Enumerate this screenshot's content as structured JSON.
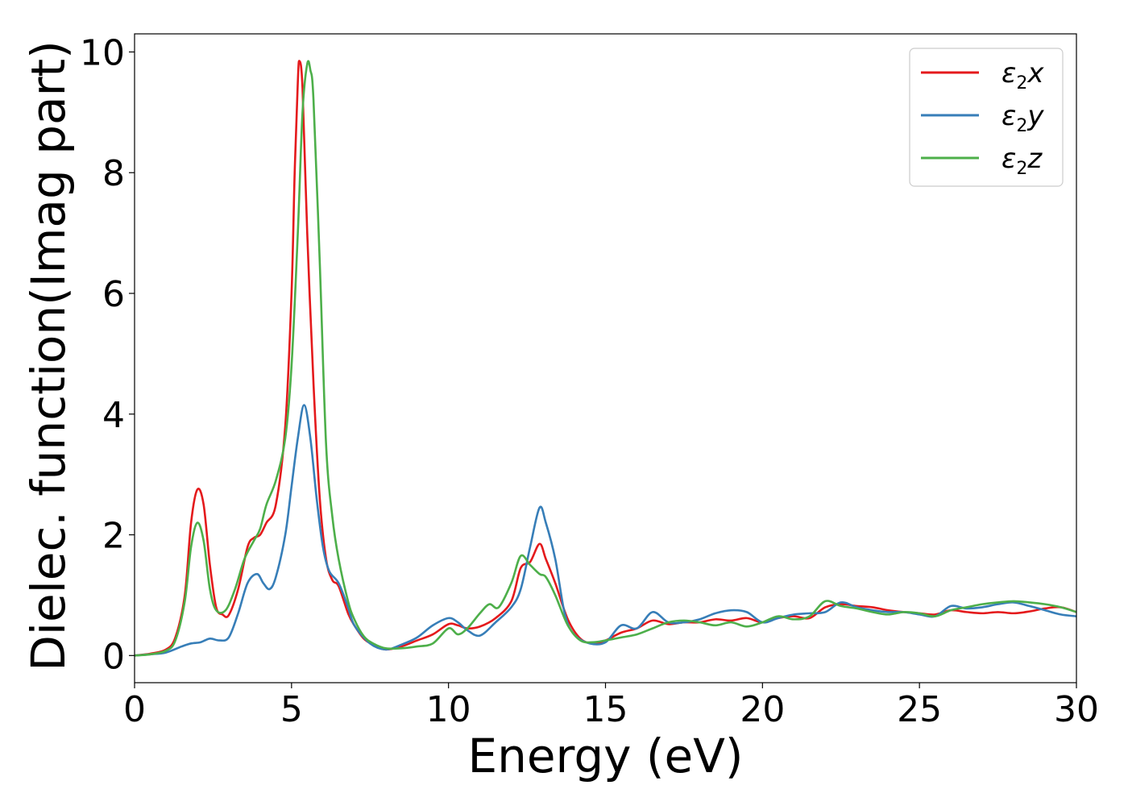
{
  "chart_data": {
    "type": "line",
    "title": "",
    "xlabel": "Energy (eV)",
    "ylabel": "Dielec. function(Imag part)",
    "xlim": [
      0,
      30
    ],
    "ylim": [
      -0.45,
      10.3
    ],
    "xticks": [
      0,
      5,
      10,
      15,
      20,
      25,
      30
    ],
    "yticks": [
      0,
      2,
      4,
      6,
      8,
      10
    ],
    "grid": false,
    "legend_position": "top-right",
    "series": [
      {
        "name": "ε2x",
        "legend": {
          "base": "ε",
          "sub": "2",
          "suffix": "x"
        },
        "color": "#e41a1c",
        "x": [
          0,
          0.5,
          1.0,
          1.3,
          1.6,
          1.8,
          2.0,
          2.2,
          2.4,
          2.6,
          2.8,
          3.0,
          3.3,
          3.6,
          3.8,
          4.0,
          4.2,
          4.5,
          4.8,
          5.0,
          5.1,
          5.2,
          5.25,
          5.35,
          5.5,
          5.7,
          5.9,
          6.1,
          6.3,
          6.5,
          6.8,
          7.0,
          7.3,
          7.6,
          8.0,
          8.5,
          9.0,
          9.5,
          10.0,
          10.3,
          10.6,
          11.0,
          11.5,
          12.0,
          12.3,
          12.6,
          12.9,
          13.1,
          13.4,
          13.8,
          14.2,
          14.6,
          15.0,
          15.5,
          16.0,
          16.5,
          17.0,
          17.5,
          18.0,
          18.5,
          19.0,
          19.5,
          20.0,
          20.5,
          21.0,
          21.5,
          22.0,
          22.5,
          23.0,
          23.5,
          24.0,
          24.5,
          25.0,
          25.5,
          26.0,
          26.5,
          27.0,
          27.5,
          28.0,
          28.5,
          29.0,
          29.5,
          30.0
        ],
        "y": [
          0,
          0.03,
          0.1,
          0.3,
          1.0,
          2.2,
          2.75,
          2.5,
          1.5,
          0.8,
          0.68,
          0.67,
          1.1,
          1.8,
          1.95,
          2.0,
          2.2,
          2.5,
          3.8,
          6.0,
          8.0,
          9.5,
          9.85,
          9.4,
          7.0,
          4.5,
          2.6,
          1.6,
          1.25,
          1.15,
          0.7,
          0.5,
          0.28,
          0.18,
          0.1,
          0.15,
          0.25,
          0.35,
          0.52,
          0.5,
          0.45,
          0.48,
          0.62,
          0.9,
          1.45,
          1.55,
          1.85,
          1.6,
          1.2,
          0.6,
          0.28,
          0.2,
          0.25,
          0.38,
          0.45,
          0.58,
          0.52,
          0.55,
          0.55,
          0.6,
          0.58,
          0.62,
          0.55,
          0.62,
          0.65,
          0.62,
          0.8,
          0.85,
          0.82,
          0.8,
          0.75,
          0.72,
          0.7,
          0.68,
          0.75,
          0.72,
          0.7,
          0.72,
          0.7,
          0.73,
          0.78,
          0.8,
          0.72
        ]
      },
      {
        "name": "ε2y",
        "legend": {
          "base": "ε",
          "sub": "2",
          "suffix": "y"
        },
        "color": "#377eb8",
        "x": [
          0,
          0.5,
          1.0,
          1.5,
          1.8,
          2.1,
          2.4,
          2.7,
          3.0,
          3.3,
          3.6,
          3.9,
          4.1,
          4.3,
          4.5,
          4.8,
          5.0,
          5.2,
          5.4,
          5.6,
          5.8,
          6.0,
          6.2,
          6.5,
          6.8,
          7.0,
          7.5,
          8.0,
          8.5,
          9.0,
          9.5,
          10.0,
          10.3,
          10.6,
          11.0,
          11.5,
          12.0,
          12.3,
          12.6,
          12.9,
          13.1,
          13.4,
          13.7,
          14.0,
          14.5,
          15.0,
          15.5,
          16.0,
          16.5,
          17.0,
          17.5,
          18.0,
          18.5,
          19.0,
          19.5,
          20.0,
          20.5,
          21.0,
          21.5,
          22.0,
          22.5,
          23.0,
          23.5,
          24.0,
          24.5,
          25.0,
          25.5,
          26.0,
          26.5,
          27.0,
          27.5,
          28.0,
          28.5,
          29.0,
          29.5,
          30.0
        ],
        "y": [
          0,
          0.02,
          0.05,
          0.15,
          0.2,
          0.22,
          0.28,
          0.25,
          0.3,
          0.7,
          1.2,
          1.35,
          1.2,
          1.1,
          1.3,
          2.0,
          2.8,
          3.6,
          4.15,
          3.6,
          2.6,
          1.8,
          1.4,
          1.2,
          0.8,
          0.5,
          0.2,
          0.1,
          0.18,
          0.3,
          0.5,
          0.62,
          0.55,
          0.42,
          0.33,
          0.55,
          0.8,
          1.1,
          1.8,
          2.45,
          2.2,
          1.6,
          0.7,
          0.35,
          0.2,
          0.22,
          0.5,
          0.45,
          0.72,
          0.55,
          0.55,
          0.6,
          0.7,
          0.75,
          0.72,
          0.55,
          0.62,
          0.68,
          0.7,
          0.72,
          0.88,
          0.8,
          0.75,
          0.72,
          0.72,
          0.68,
          0.65,
          0.82,
          0.78,
          0.8,
          0.85,
          0.88,
          0.82,
          0.75,
          0.68,
          0.65
        ]
      },
      {
        "name": "ε2z",
        "legend": {
          "base": "ε",
          "sub": "2",
          "suffix": "z"
        },
        "color": "#4daf4a",
        "x": [
          0,
          0.5,
          1.0,
          1.3,
          1.6,
          1.8,
          2.0,
          2.2,
          2.4,
          2.6,
          2.9,
          3.2,
          3.5,
          3.8,
          4.0,
          4.2,
          4.5,
          4.8,
          5.0,
          5.2,
          5.35,
          5.5,
          5.6,
          5.7,
          5.9,
          6.1,
          6.3,
          6.5,
          6.8,
          7.0,
          7.3,
          7.6,
          8.0,
          8.5,
          9.0,
          9.5,
          10.0,
          10.3,
          10.6,
          11.0,
          11.3,
          11.6,
          12.0,
          12.3,
          12.6,
          12.9,
          13.1,
          13.4,
          13.8,
          14.2,
          14.6,
          15.0,
          15.5,
          16.0,
          16.5,
          17.0,
          17.5,
          18.0,
          18.5,
          19.0,
          19.5,
          20.0,
          20.5,
          21.0,
          21.5,
          22.0,
          22.5,
          23.0,
          23.5,
          24.0,
          24.5,
          25.0,
          25.5,
          26.0,
          26.5,
          27.0,
          27.5,
          28.0,
          28.5,
          29.0,
          29.5,
          30.0
        ],
        "y": [
          0,
          0.02,
          0.08,
          0.25,
          0.9,
          1.8,
          2.2,
          1.9,
          1.1,
          0.75,
          0.75,
          1.1,
          1.6,
          1.9,
          2.1,
          2.5,
          2.9,
          3.6,
          4.8,
          7.0,
          9.0,
          9.8,
          9.7,
          9.2,
          6.5,
          3.5,
          2.3,
          1.6,
          0.9,
          0.6,
          0.32,
          0.2,
          0.12,
          0.12,
          0.15,
          0.2,
          0.45,
          0.35,
          0.45,
          0.7,
          0.85,
          0.8,
          1.2,
          1.65,
          1.5,
          1.35,
          1.3,
          1.0,
          0.5,
          0.25,
          0.22,
          0.25,
          0.3,
          0.35,
          0.45,
          0.55,
          0.58,
          0.55,
          0.5,
          0.55,
          0.48,
          0.55,
          0.65,
          0.6,
          0.65,
          0.9,
          0.82,
          0.78,
          0.72,
          0.68,
          0.72,
          0.7,
          0.65,
          0.75,
          0.8,
          0.85,
          0.88,
          0.9,
          0.88,
          0.85,
          0.8,
          0.72
        ]
      }
    ]
  }
}
